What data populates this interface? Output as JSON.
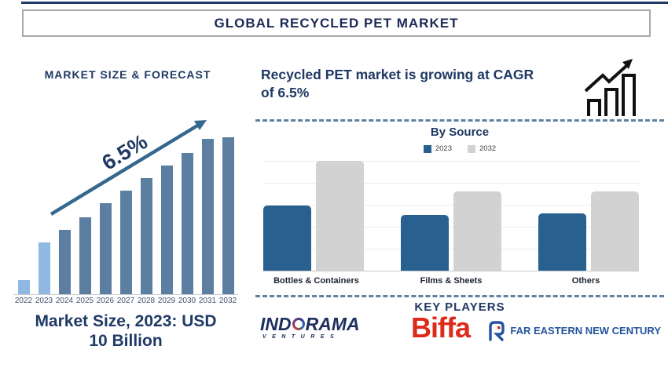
{
  "header": {
    "title": "GLOBAL RECYCLED PET MARKET"
  },
  "left_panel": {
    "title": "MARKET SIZE & FORECAST",
    "caption_line1": "Market Size, 2023: USD",
    "caption_line2": "10 Billion"
  },
  "right_panel": {
    "cagr_line1": "Recycled PET market is growing at CAGR",
    "cagr_line2": "of 6.5%",
    "growth_icon": "growth-chart-icon"
  },
  "key_players": {
    "title": "KEY PLAYERS",
    "logos": [
      {
        "name": "Indorama Ventures",
        "text_part1": "IND",
        "text_part2": "RAMA",
        "text_sub": "VENTURES"
      },
      {
        "name": "Biffa",
        "text": "Biffa"
      },
      {
        "name": "Far Eastern New Century",
        "text": "FAR EASTERN NEW CENTURY"
      }
    ]
  },
  "colors": {
    "navy": "#1F3864",
    "arrow_steel": "#35688E",
    "forecast_bar_highlight": "#8FB9E2",
    "forecast_bar_default": "#5B7EA1",
    "source_2023_blue": "#28608F",
    "source_2032_gray": "#D2D2D2",
    "divider_blue": "#5E81A0",
    "biffa_red": "#DE2A1B",
    "fenc_blue": "#24549E",
    "indorama_navy": "#20305E"
  },
  "chart_data": [
    {
      "id": "market_size_forecast",
      "type": "bar",
      "title": "MARKET SIZE & FORECAST",
      "categories": [
        "2022",
        "2023",
        "2024",
        "2025",
        "2026",
        "2027",
        "2028",
        "2029",
        "2030",
        "2031",
        "2032"
      ],
      "values_index": [
        9,
        33,
        41,
        49,
        58,
        66,
        74,
        82,
        90,
        99,
        100
      ],
      "annotation": "6.5%",
      "known_point": {
        "year": "2023",
        "value": "USD 10 Billion"
      },
      "highlighted_years": [
        "2022",
        "2023"
      ],
      "bar_color_highlight": "#8FB9E2",
      "bar_color_default": "#5B7EA1",
      "xlabel": "",
      "ylabel": "",
      "grid": false,
      "axis_labels_shown": "x-only"
    },
    {
      "id": "by_source",
      "type": "grouped_bar",
      "title": "By Source",
      "categories": [
        "Bottles & Containers",
        "Films & Sheets",
        "Others"
      ],
      "series": [
        {
          "name": "2023",
          "color": "#28608F",
          "values": [
            59,
            51,
            52
          ]
        },
        {
          "name": "2032",
          "color": "#D2D2D2",
          "values": [
            100,
            72,
            72
          ]
        }
      ],
      "value_scale": "relative index (2032 Bottles & Containers = 100)",
      "legend_position": "top",
      "grid": true
    }
  ]
}
